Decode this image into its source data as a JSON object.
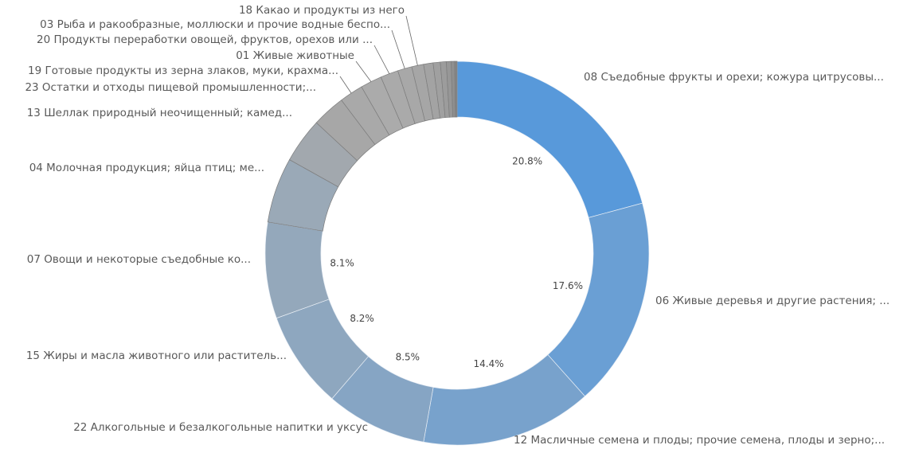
{
  "chart_data": {
    "type": "donut",
    "categories": [
      "08 Съедобные фрукты и орехи; кожура цитрусовы...",
      "06 Живые деревья и другие растения; ...",
      "12 Масличные семена и плоды; прочие семена, плоды и зерно;...",
      "22 Алкогольные и безалкогольные напитки и уксус",
      "15 Жиры и масла животного или раститель...",
      "07 Овощи и некоторые съедобные  ко...",
      "04 Молочная продукция; яйца птиц; ме...",
      "13 Шеллак природный неочищенный; камед...",
      "23 Остатки и отходы пищевой промышленности;...",
      "19 Готовые продукты из зерна злаков, муки, крахма...",
      "01 Живые животные",
      "20 Продукты переработки овощей, фруктов,  орехов или ...",
      "03 Рыба и ракообразные, моллюски и прочие  водные беспо...",
      "18 Какао и продукты из него",
      null,
      null,
      null,
      null,
      null,
      null
    ],
    "values": [
      20.8,
      17.6,
      14.4,
      8.5,
      8.2,
      8.1,
      5.5,
      3.8,
      2.8,
      2.0,
      1.8,
      1.5,
      1.2,
      1.0,
      0.8,
      0.6,
      0.5,
      0.4,
      0.3,
      0.2
    ],
    "value_labels": [
      "20.8%",
      "17.6%",
      "14.4%",
      "8.5%",
      "8.2%",
      "8.1%",
      null,
      null,
      null,
      null,
      null,
      null,
      null,
      null,
      null,
      null,
      null,
      null,
      null,
      null
    ],
    "colors": [
      "#5899da",
      "#6a9fd4",
      "#78a2cc",
      "#86a5c4",
      "#8ea7bf",
      "#94a8bb",
      "#9aa9b7",
      "#a2a8ae",
      "#a7a7a7",
      "#a9a9a9",
      "#ababab",
      "#aaaaaa",
      "#a8a8a8",
      "#a6a6a6",
      "#a3a3a3",
      "#a0a0a0",
      "#9c9c9c",
      "#979797",
      "#8f8f8f",
      "#858585"
    ]
  }
}
